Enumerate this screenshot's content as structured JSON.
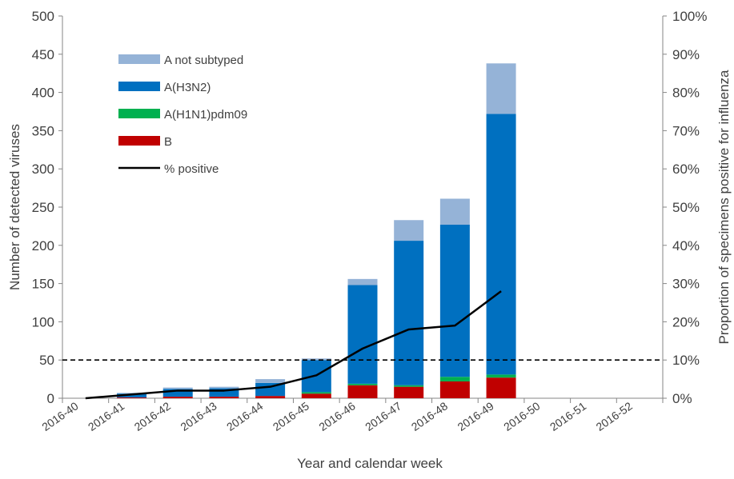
{
  "chart_data": {
    "type": "bar",
    "stacked": true,
    "xlabel": "Year and calendar week",
    "ylabel": "Number of detected viruses",
    "y2label": "Proportion of specimens positive for influenza",
    "ylim": [
      0,
      500
    ],
    "y2lim": [
      0,
      100
    ],
    "yticks": [
      "0",
      "50",
      "100",
      "150",
      "200",
      "250",
      "300",
      "350",
      "400",
      "450",
      "500"
    ],
    "y2ticks": [
      "0%",
      "10%",
      "20%",
      "30%",
      "40%",
      "50%",
      "60%",
      "70%",
      "80%",
      "90%",
      "100%"
    ],
    "categories": [
      "2016-40",
      "2016-41",
      "2016-42",
      "2016-43",
      "2016-44",
      "2016-45",
      "2016-46",
      "2016-47",
      "2016-48",
      "2016-49",
      "2016-50",
      "2016-51",
      "2016-52"
    ],
    "series": [
      {
        "name": "B",
        "color": "#c00000",
        "values": [
          0,
          1,
          2,
          2,
          3,
          6,
          17,
          15,
          22,
          27,
          0,
          0,
          0
        ]
      },
      {
        "name": "A(H1N1)pdm09",
        "color": "#00b050",
        "values": [
          0,
          0,
          0,
          0,
          0,
          2,
          2,
          2,
          6,
          4,
          0,
          0,
          0
        ]
      },
      {
        "name": "A(H3N2)",
        "color": "#0070c0",
        "values": [
          0,
          5,
          10,
          11,
          17,
          42,
          129,
          189,
          199,
          341,
          0,
          0,
          0
        ]
      },
      {
        "name": "A not subtyped",
        "color": "#95b3d7",
        "values": [
          0,
          1,
          2,
          2,
          5,
          2,
          8,
          27,
          34,
          66,
          0,
          0,
          0
        ]
      }
    ],
    "line": {
      "name": "% positive",
      "color": "#000000",
      "axis": "right",
      "values": [
        0,
        1,
        2,
        2,
        3,
        6,
        13,
        18,
        19,
        28,
        null,
        null,
        null
      ]
    },
    "threshold": {
      "value": 10,
      "axis": "right",
      "style": "dashed"
    },
    "legend": {
      "position": "top-left",
      "order": [
        "A not subtyped",
        "A(H3N2)",
        "A(H1N1)pdm09",
        "B",
        "% positive"
      ]
    },
    "grid": false
  }
}
